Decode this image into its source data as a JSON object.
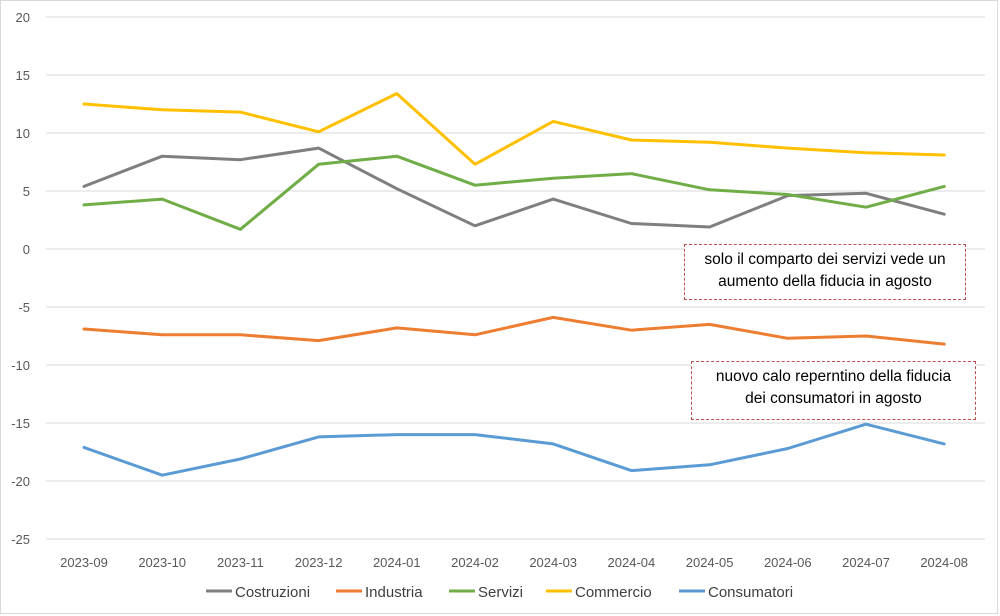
{
  "chart_data": {
    "type": "line",
    "categories": [
      "2023-09",
      "2023-10",
      "2023-11",
      "2023-12",
      "2024-01",
      "2024-02",
      "2024-03",
      "2024-04",
      "2024-05",
      "2024-06",
      "2024-07",
      "2024-08"
    ],
    "ylim": [
      -25,
      20
    ],
    "yticks": [
      20,
      15,
      10,
      5,
      0,
      -5,
      -10,
      -15,
      -20,
      -25
    ],
    "grid": true,
    "legend_position": "bottom",
    "series": [
      {
        "name": "Costruzioni",
        "color": "#7f7f7f",
        "values": [
          5.4,
          8.0,
          7.7,
          8.7,
          5.2,
          2.0,
          4.3,
          2.2,
          1.9,
          4.6,
          4.8,
          3.0
        ]
      },
      {
        "name": "Industria",
        "color": "#ed7d31",
        "values": [
          -6.9,
          -7.4,
          -7.4,
          -7.9,
          -6.8,
          -7.4,
          -5.9,
          -7.0,
          -6.5,
          -7.7,
          -7.5,
          -8.2
        ]
      },
      {
        "name": "Servizi",
        "color": "#70ad47",
        "values": [
          3.8,
          4.3,
          1.7,
          7.3,
          8.0,
          5.5,
          6.1,
          6.5,
          5.1,
          4.7,
          3.6,
          5.4
        ]
      },
      {
        "name": "Commercio",
        "color": "#ffc000",
        "values": [
          12.5,
          12.0,
          11.8,
          10.1,
          13.4,
          7.3,
          11.0,
          9.4,
          9.2,
          8.7,
          8.3,
          8.1
        ]
      },
      {
        "name": "Consumatori",
        "color": "#5b9bd5",
        "values": [
          -17.1,
          -19.5,
          -18.1,
          -16.2,
          -16.0,
          -16.0,
          -16.8,
          -19.1,
          -18.6,
          -17.2,
          -15.1,
          -16.8
        ]
      }
    ],
    "annotations": [
      {
        "lines": [
          "solo il comparto dei servizi vede un",
          "aumento della fiducia in agosto"
        ]
      },
      {
        "lines": [
          "nuovo calo reperntino della fiducia",
          "dei consumatori in agosto"
        ]
      }
    ]
  }
}
